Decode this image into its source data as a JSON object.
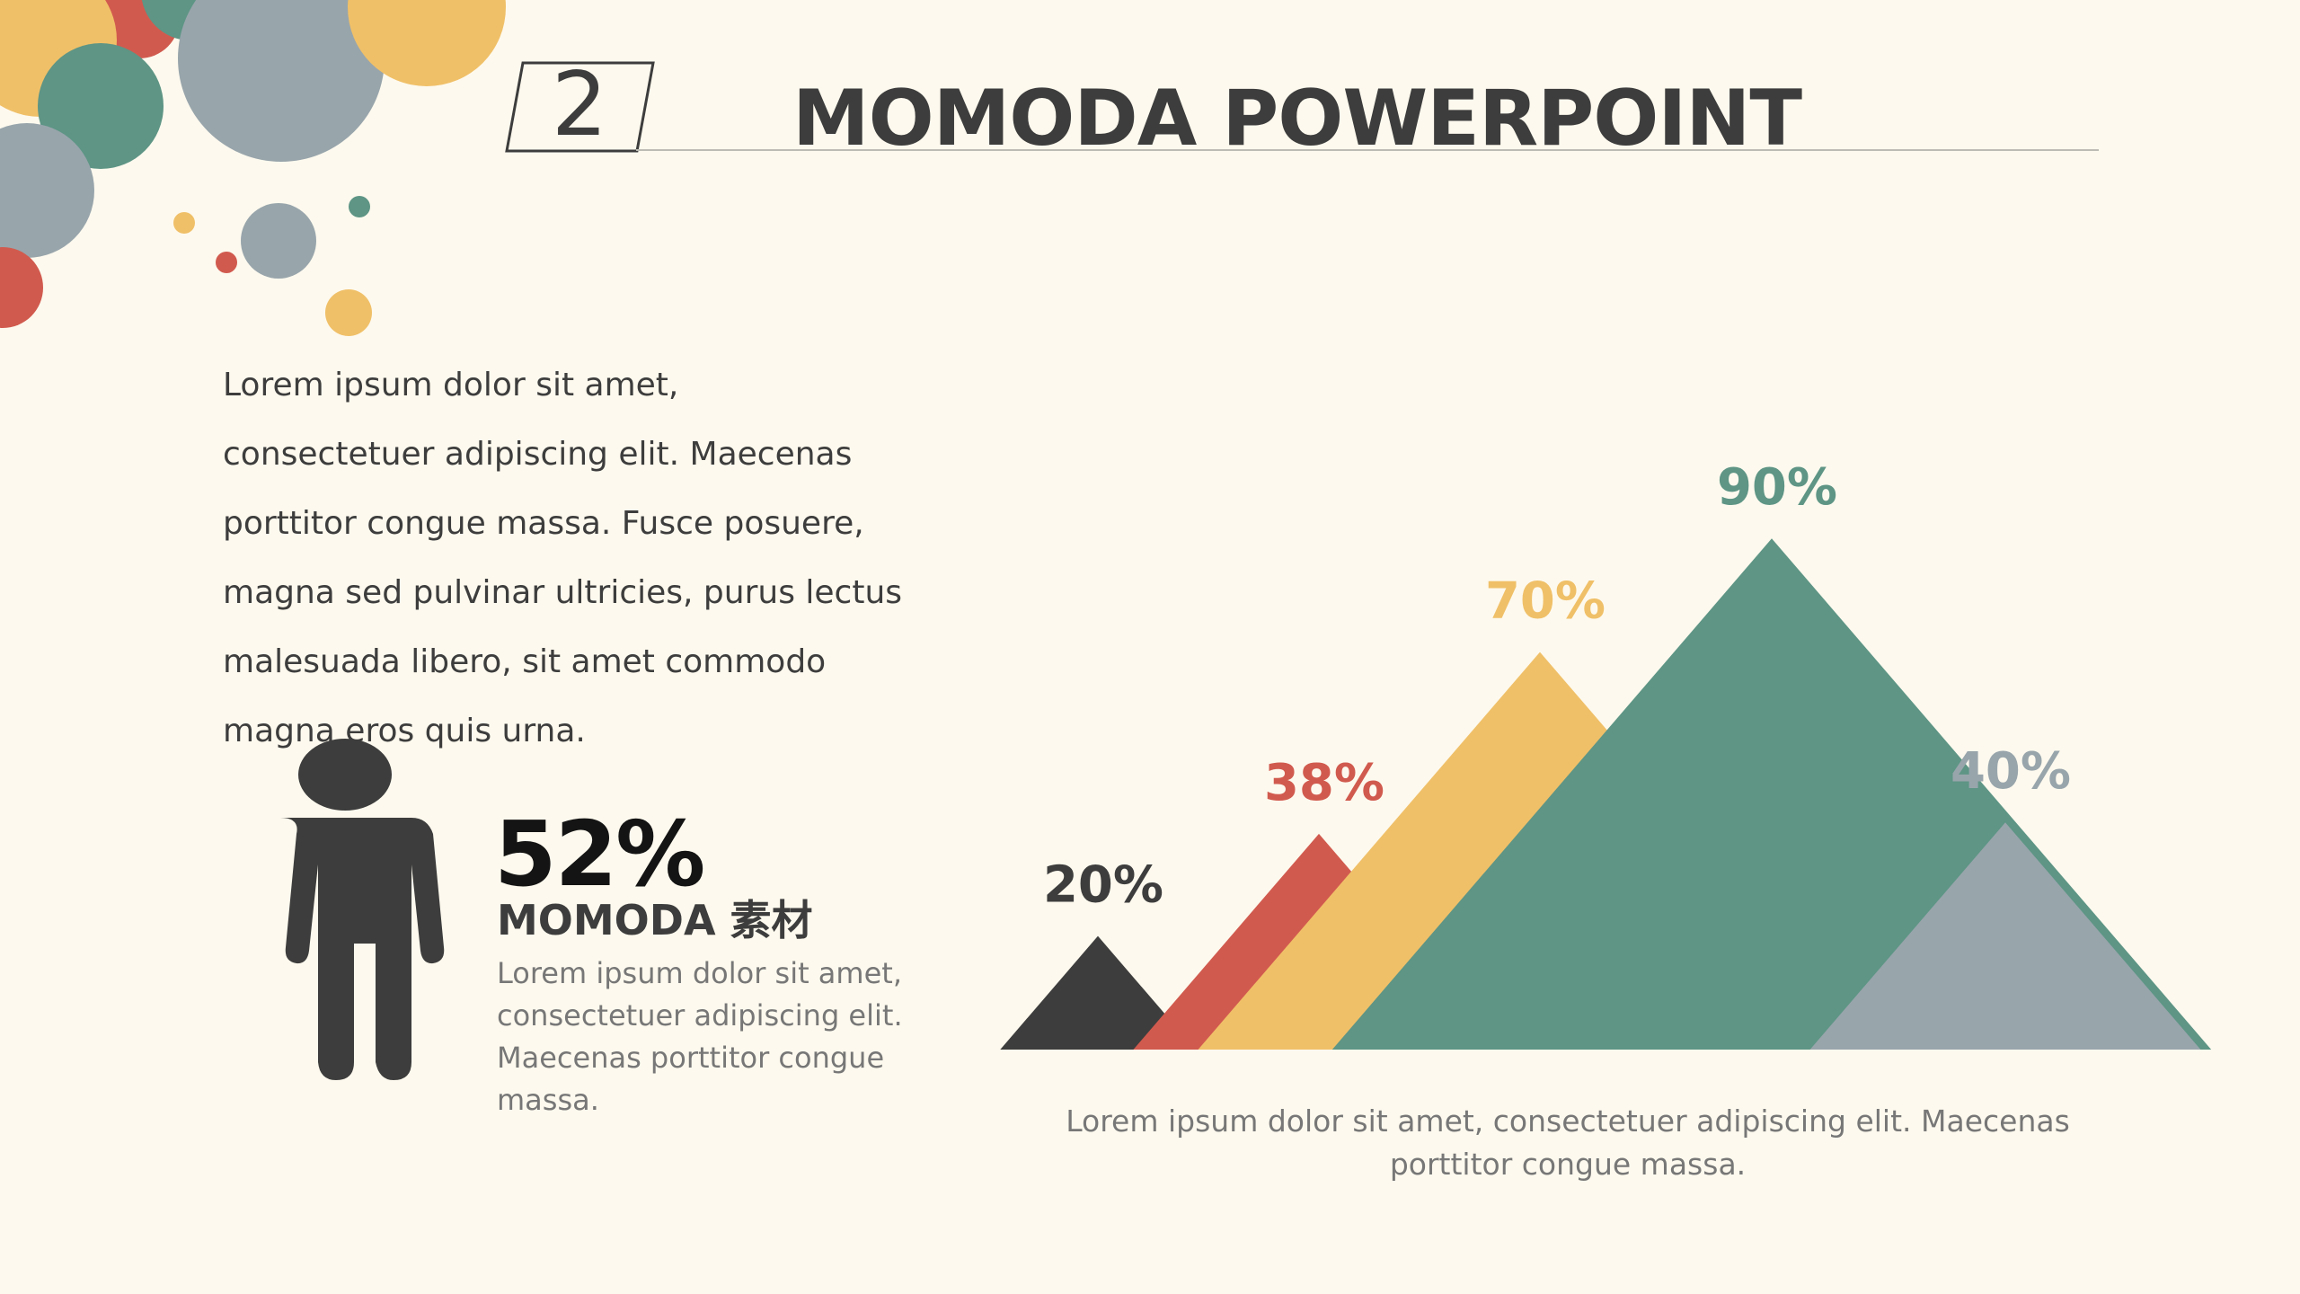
{
  "slide": {
    "number": "2",
    "title": "MOMODA POWERPOINT"
  },
  "intro": {
    "lines": [
      "Lorem ipsum dolor sit amet,",
      "consectetuer adipiscing elit. Maecenas",
      "porttitor congue massa. Fusce posuere,",
      "magna sed pulvinar ultricies, purus lectus",
      "malesuada libero, sit amet commodo",
      "magna eros quis urna."
    ]
  },
  "stat": {
    "value": "52%",
    "title": "MOMODA 素材",
    "lines": [
      "Lorem ipsum dolor sit amet,",
      "consectetuer adipiscing elit.",
      "Maecenas porttitor congue",
      "massa."
    ],
    "icon": "person-icon"
  },
  "chart_data": {
    "type": "bar",
    "mark": "triangle",
    "values": [
      20,
      38,
      70,
      90,
      40
    ],
    "labels": [
      "20%",
      "38%",
      "70%",
      "90%",
      "40%"
    ],
    "colors": [
      "#3d3d3d",
      "#d15a4e",
      "#f0c068",
      "#5e9585",
      "#98a5ab"
    ],
    "ylim": [
      0,
      100
    ]
  },
  "caption": "Lorem ipsum dolor sit amet, consectetuer adipiscing elit. Maecenas porttitor congue massa.",
  "palette": {
    "yellow": "#f0c068",
    "red": "#d15a4e",
    "teal": "#5e9585",
    "grey": "#98a5ab",
    "dark": "#3d3d3d",
    "background": "#fdf9ee"
  }
}
